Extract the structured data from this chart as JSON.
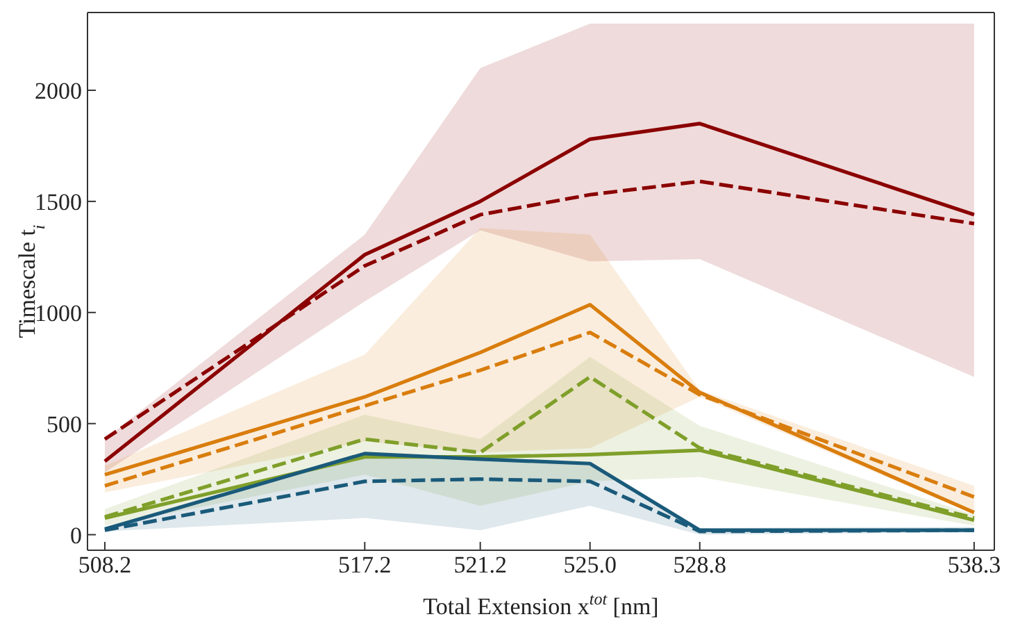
{
  "chart_data": {
    "type": "line",
    "xlabel": "Total Extension x$^{tot}$ [nm]",
    "ylabel": "Timescale t$_{i}$",
    "x": [
      508.2,
      517.2,
      521.2,
      525.0,
      528.8,
      538.3
    ],
    "xlim": [
      507.6,
      539.0
    ],
    "xticks": [
      508.2,
      517.2,
      521.2,
      {
        "value": 525.0,
        "label": "525.0"
      },
      528.8,
      538.3
    ],
    "ylim": [
      -70,
      2350
    ],
    "yticks": [
      0,
      500,
      1000,
      1500,
      2000
    ],
    "grid": false,
    "legend": false,
    "marker": "none",
    "series": [
      {
        "color": "#8b0000",
        "line_style": "solid",
        "values": [
          330,
          1260,
          1500,
          1780,
          1850,
          1440
        ],
        "lower": [
          280,
          1050,
          1370,
          1230,
          1240,
          710
        ],
        "upper": [
          430,
          1350,
          2100,
          2300,
          2300,
          2300
        ]
      },
      {
        "color": "#d97d0d",
        "line_style": "solid",
        "values": [
          270,
          620,
          820,
          1035,
          640,
          100
        ],
        "lower": [
          190,
          420,
          370,
          390,
          620,
          90
        ],
        "upper": [
          310,
          810,
          1380,
          1350,
          650,
          220
        ]
      },
      {
        "color": "#7f9f2a",
        "line_style": "solid",
        "values": [
          75,
          350,
          350,
          360,
          380,
          65
        ],
        "lower": [
          40,
          270,
          130,
          240,
          260,
          40
        ],
        "upper": [
          115,
          540,
          430,
          800,
          490,
          90
        ]
      },
      {
        "color": "#1a5a7a",
        "line_style": "solid",
        "values": [
          25,
          365,
          340,
          320,
          20,
          20
        ],
        "lower": [
          15,
          75,
          20,
          130,
          0,
          10
        ],
        "upper": [
          30,
          370,
          340,
          320,
          30,
          35
        ]
      },
      {
        "color": "#8b0000",
        "line_style": "dashed",
        "values": [
          430,
          1210,
          1440,
          1530,
          1590,
          1400
        ]
      },
      {
        "color": "#d97d0d",
        "line_style": "dashed",
        "values": [
          220,
          580,
          740,
          910,
          630,
          170
        ]
      },
      {
        "color": "#7f9f2a",
        "line_style": "dashed",
        "values": [
          80,
          430,
          370,
          710,
          390,
          75
        ]
      },
      {
        "color": "#1a5a7a",
        "line_style": "dashed",
        "values": [
          20,
          240,
          250,
          240,
          15,
          20
        ]
      }
    ]
  }
}
